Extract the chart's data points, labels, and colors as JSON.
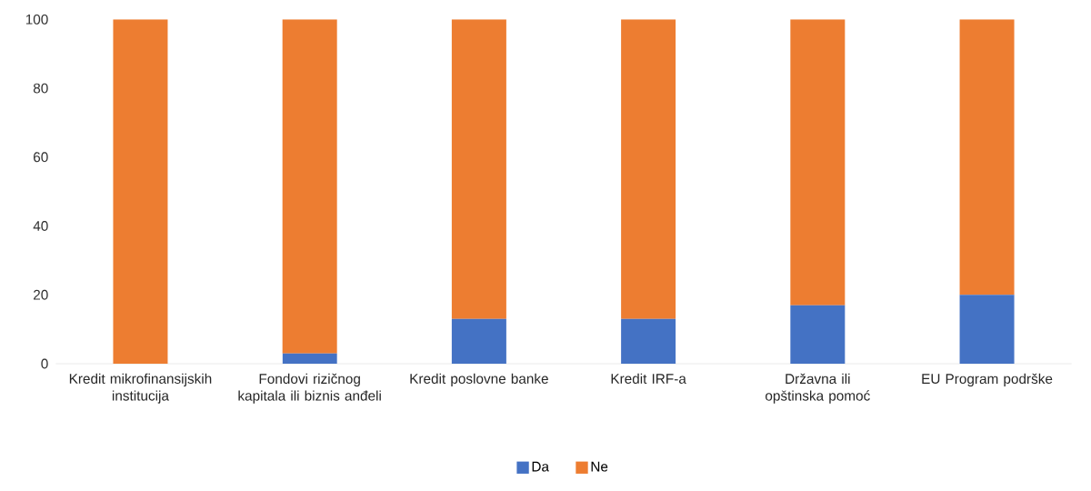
{
  "chart_data": {
    "type": "bar",
    "stacked": true,
    "categories": [
      "Kredit mikrofinansijskih institucija",
      "Fondovi rizičnog kapitala ili biznis anđeli",
      "Kredit poslovne banke",
      "Kredit IRF-a",
      "Državna ili opštinska pomoć",
      "EU Program podrške"
    ],
    "series": [
      {
        "name": "Da",
        "color": "#4472c4",
        "values": [
          0,
          3,
          13,
          13,
          17,
          20
        ]
      },
      {
        "name": "Ne",
        "color": "#ed7d31",
        "values": [
          100,
          97,
          87,
          87,
          83,
          80
        ]
      }
    ],
    "ylim": [
      0,
      100
    ],
    "yticks": [
      0,
      20,
      40,
      60,
      80,
      100
    ],
    "grid": false,
    "legend": "bottom"
  }
}
